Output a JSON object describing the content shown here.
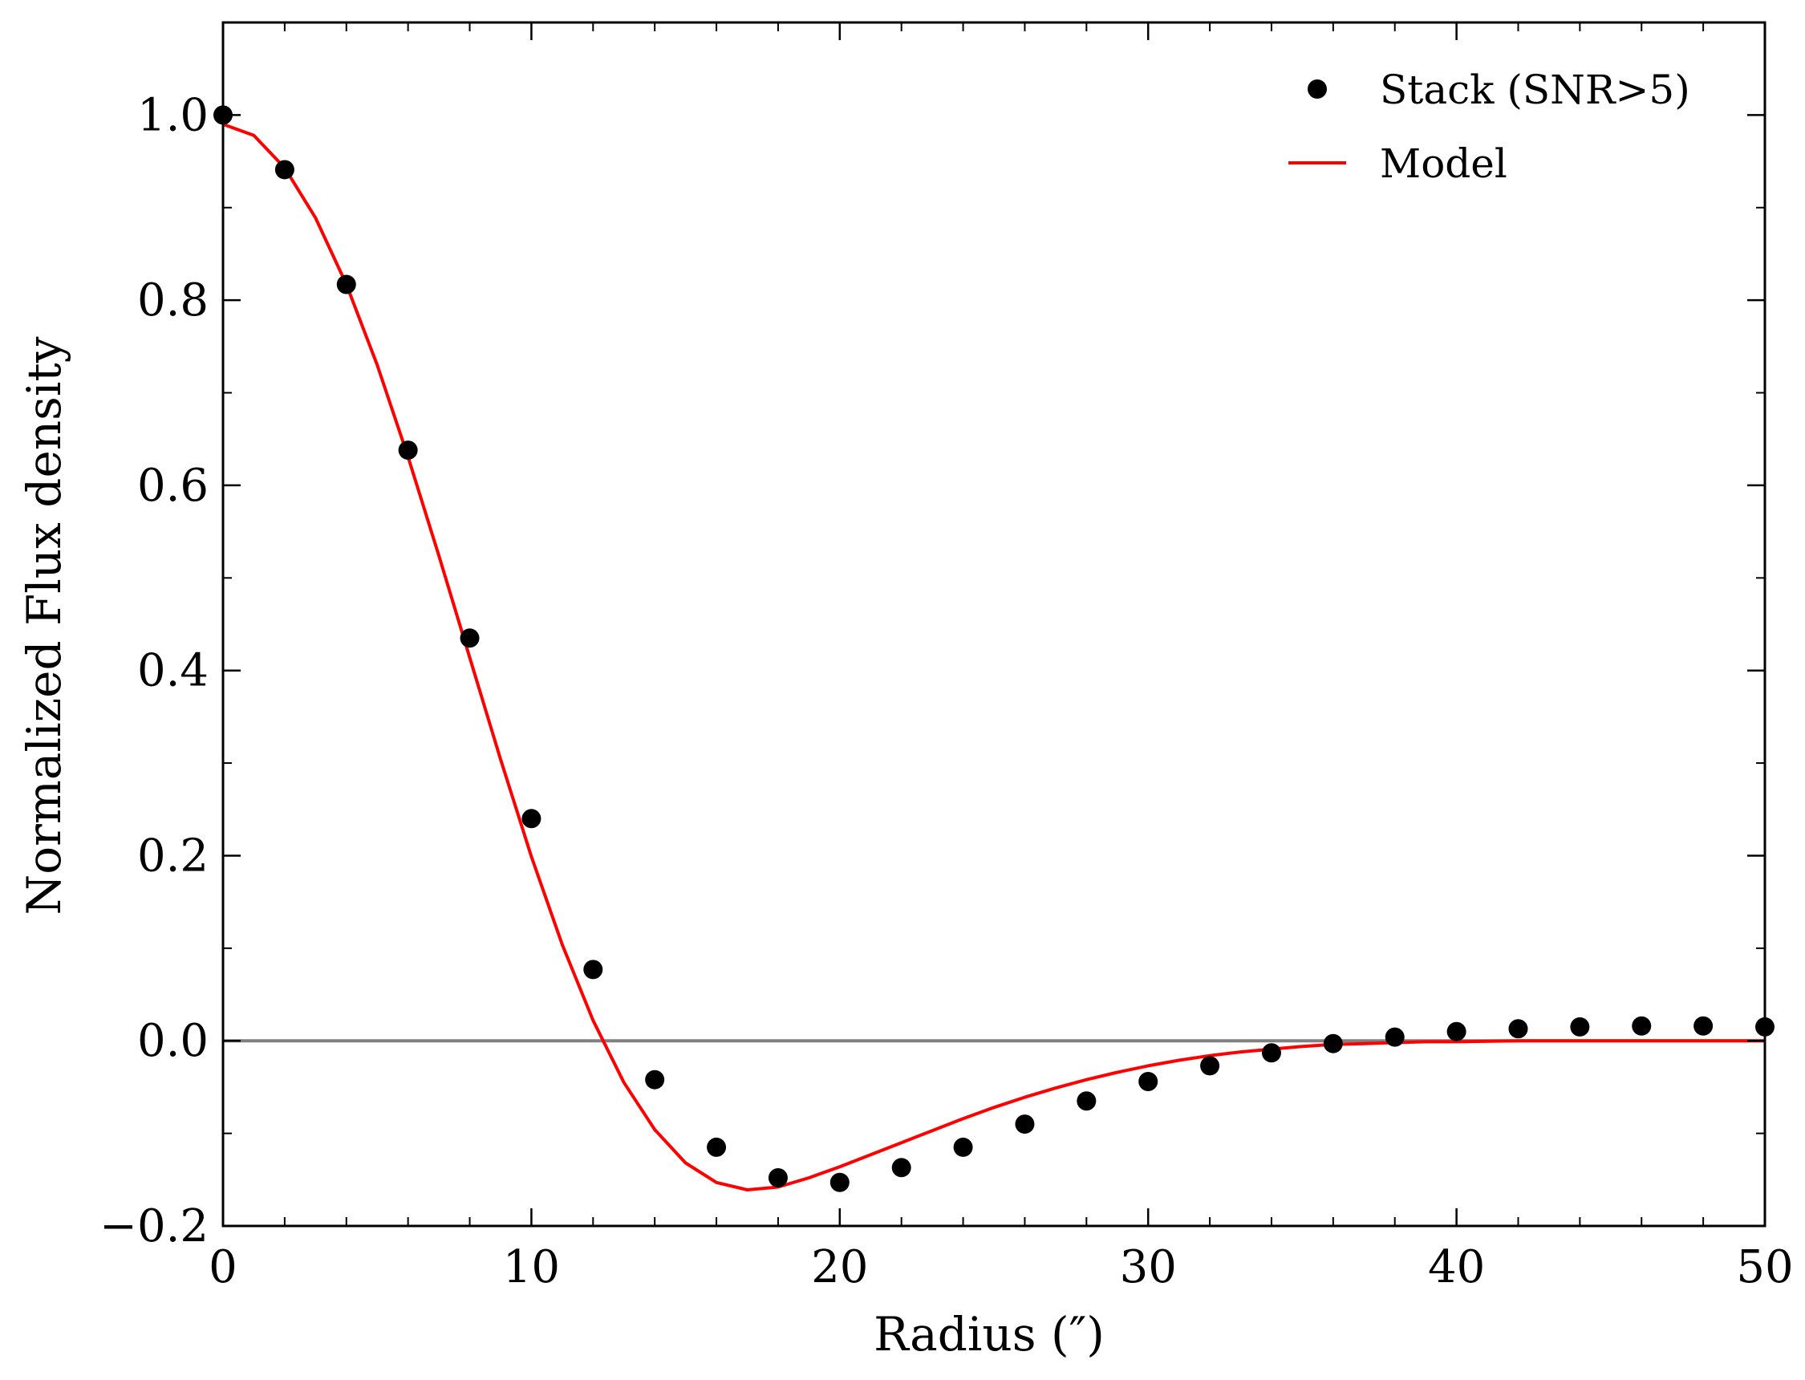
{
  "chart_data": {
    "type": "scatter",
    "title": "",
    "xlabel": "Radius (″)",
    "ylabel": "Normalized Flux density",
    "xlim": [
      0,
      50
    ],
    "ylim": [
      -0.2,
      1.1
    ],
    "x_ticks": [
      0,
      10,
      20,
      30,
      40,
      50
    ],
    "x_tick_labels": [
      "0",
      "10",
      "20",
      "30",
      "40",
      "50"
    ],
    "y_ticks": [
      -0.2,
      0.0,
      0.2,
      0.4,
      0.6,
      0.8,
      1.0
    ],
    "y_tick_labels": [
      "−0.2",
      "0.0",
      "0.2",
      "0.4",
      "0.6",
      "0.8",
      "1.0"
    ],
    "grid": false,
    "legend_position": "top-right",
    "reference_line": {
      "y": 0.0,
      "color": "#808080"
    },
    "series": [
      {
        "name": "Stack (SNR>5)",
        "kind": "scatter",
        "color": "#000000",
        "x": [
          0,
          2,
          4,
          6,
          8,
          10,
          12,
          14,
          16,
          18,
          20,
          22,
          24,
          26,
          28,
          30,
          32,
          34,
          36,
          38,
          40,
          42,
          44,
          46,
          48,
          50
        ],
        "y": [
          1.0,
          0.941,
          0.817,
          0.638,
          0.435,
          0.24,
          0.077,
          -0.042,
          -0.115,
          -0.148,
          -0.153,
          -0.137,
          -0.115,
          -0.09,
          -0.065,
          -0.044,
          -0.027,
          -0.013,
          -0.003,
          0.004,
          0.01,
          0.013,
          0.015,
          0.016,
          0.016,
          0.015
        ]
      },
      {
        "name": "Model",
        "kind": "line",
        "color": "#ff0000",
        "x": [
          0,
          1,
          2,
          3,
          4,
          5,
          6,
          7,
          8,
          9,
          10,
          11,
          12,
          13,
          14,
          15,
          16,
          17,
          18,
          19,
          20,
          21,
          22,
          23,
          24,
          25,
          26,
          27,
          28,
          29,
          30,
          31,
          32,
          33,
          34,
          35,
          36,
          37,
          38,
          39,
          40,
          42,
          44,
          46,
          48,
          50
        ],
        "y": [
          0.99,
          0.978,
          0.943,
          0.889,
          0.817,
          0.73,
          0.631,
          0.524,
          0.414,
          0.304,
          0.199,
          0.104,
          0.022,
          -0.045,
          -0.096,
          -0.132,
          -0.153,
          -0.161,
          -0.158,
          -0.148,
          -0.136,
          -0.123,
          -0.11,
          -0.097,
          -0.084,
          -0.072,
          -0.061,
          -0.051,
          -0.042,
          -0.034,
          -0.027,
          -0.021,
          -0.016,
          -0.012,
          -0.009,
          -0.006,
          -0.004,
          -0.003,
          -0.002,
          -0.001,
          -0.001,
          0.0,
          0.0,
          0.0,
          0.0,
          0.0
        ]
      }
    ]
  }
}
